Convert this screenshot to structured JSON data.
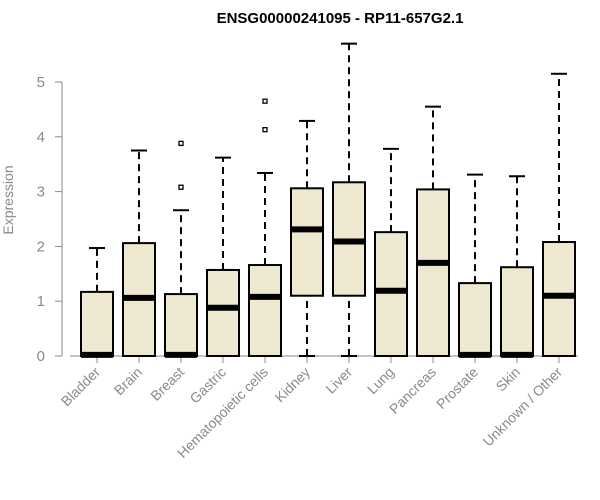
{
  "chart_data": {
    "type": "box",
    "title": "ENSG00000241095 - RP11-657G2.1",
    "xlabel": "",
    "ylabel": "Expression",
    "ylim": [
      0,
      5.8
    ],
    "yticks": [
      0,
      1,
      2,
      3,
      4,
      5
    ],
    "categories": [
      "Bladder",
      "Brain",
      "Breast",
      "Gastric",
      "Hematopoietic cells",
      "Kidney",
      "Liver",
      "Lung",
      "Pancreas",
      "Prostate",
      "Skin",
      "Unknown / Other"
    ],
    "boxes": [
      {
        "min": 0,
        "q1": 0,
        "median": 0.02,
        "q3": 1.17,
        "max": 1.97,
        "outliers": []
      },
      {
        "min": 0,
        "q1": 0,
        "median": 1.06,
        "q3": 2.06,
        "max": 3.75,
        "outliers": []
      },
      {
        "min": 0,
        "q1": 0,
        "median": 0.02,
        "q3": 1.13,
        "max": 2.66,
        "outliers": [
          3.08,
          3.88
        ]
      },
      {
        "min": 0,
        "q1": 0,
        "median": 0.88,
        "q3": 1.57,
        "max": 3.62,
        "outliers": []
      },
      {
        "min": 0,
        "q1": 0,
        "median": 1.08,
        "q3": 1.66,
        "max": 3.34,
        "outliers": [
          4.13,
          4.65
        ]
      },
      {
        "min": 0,
        "q1": 1.1,
        "median": 2.31,
        "q3": 3.06,
        "max": 4.29,
        "outliers": []
      },
      {
        "min": 0,
        "q1": 1.1,
        "median": 2.09,
        "q3": 3.17,
        "max": 5.7,
        "outliers": []
      },
      {
        "min": 0,
        "q1": 0,
        "median": 1.19,
        "q3": 2.26,
        "max": 3.78,
        "outliers": []
      },
      {
        "min": 0,
        "q1": 0,
        "median": 1.7,
        "q3": 3.04,
        "max": 4.55,
        "outliers": []
      },
      {
        "min": 0,
        "q1": 0,
        "median": 0.02,
        "q3": 1.33,
        "max": 3.31,
        "outliers": []
      },
      {
        "min": 0,
        "q1": 0,
        "median": 0.02,
        "q3": 1.62,
        "max": 3.28,
        "outliers": []
      },
      {
        "min": 0,
        "q1": 0,
        "median": 1.1,
        "q3": 2.08,
        "max": 5.15,
        "outliers": []
      }
    ],
    "box_fill": "#efe8d0",
    "box_stroke": "#000000",
    "axis_color": "#8a8a8a",
    "grid": false,
    "legend": "none"
  }
}
